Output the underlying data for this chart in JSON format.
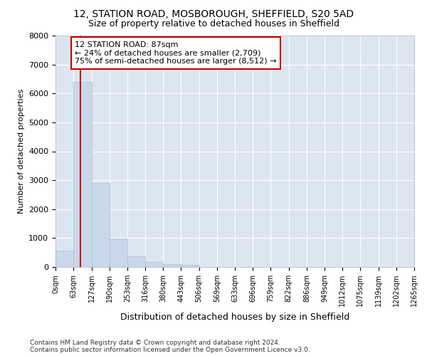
{
  "title": "12, STATION ROAD, MOSBOROUGH, SHEFFIELD, S20 5AD",
  "subtitle": "Size of property relative to detached houses in Sheffield",
  "xlabel": "Distribution of detached houses by size in Sheffield",
  "ylabel": "Number of detached properties",
  "footnote1": "Contains HM Land Registry data © Crown copyright and database right 2024.",
  "footnote2": "Contains public sector information licensed under the Open Government Licence v3.0.",
  "bar_edges": [
    0,
    63,
    127,
    190,
    253,
    316,
    380,
    443,
    506,
    569,
    633,
    696,
    759,
    822,
    886,
    949,
    1012,
    1075,
    1139,
    1202,
    1265
  ],
  "bar_heights": [
    570,
    6400,
    2900,
    975,
    370,
    175,
    100,
    70,
    0,
    0,
    0,
    0,
    0,
    0,
    0,
    0,
    0,
    0,
    0,
    0
  ],
  "bar_color": "#c8d8ea",
  "bar_edgecolor": "#a8bfd4",
  "property_line_x": 87,
  "property_line_color": "#cc0000",
  "annotation_text": "12 STATION ROAD: 87sqm\n← 24% of detached houses are smaller (2,709)\n75% of semi-detached houses are larger (8,512) →",
  "annotation_box_facecolor": "#ffffff",
  "annotation_box_edgecolor": "#cc0000",
  "ylim": [
    0,
    8000
  ],
  "yticks": [
    0,
    1000,
    2000,
    3000,
    4000,
    5000,
    6000,
    7000,
    8000
  ],
  "bg_color": "#ffffff",
  "plot_bg_color": "#dce6f0",
  "grid_color": "#ffffff",
  "tick_labels": [
    "0sqm",
    "63sqm",
    "127sqm",
    "190sqm",
    "253sqm",
    "316sqm",
    "380sqm",
    "443sqm",
    "506sqm",
    "569sqm",
    "633sqm",
    "696sqm",
    "759sqm",
    "822sqm",
    "886sqm",
    "949sqm",
    "1012sqm",
    "1075sqm",
    "1139sqm",
    "1202sqm",
    "1265sqm"
  ],
  "title_fontsize": 10,
  "subtitle_fontsize": 9,
  "ylabel_fontsize": 8,
  "xlabel_fontsize": 9,
  "ytick_fontsize": 8,
  "xtick_fontsize": 7,
  "annotation_fontsize": 8,
  "footnote_fontsize": 6.5
}
